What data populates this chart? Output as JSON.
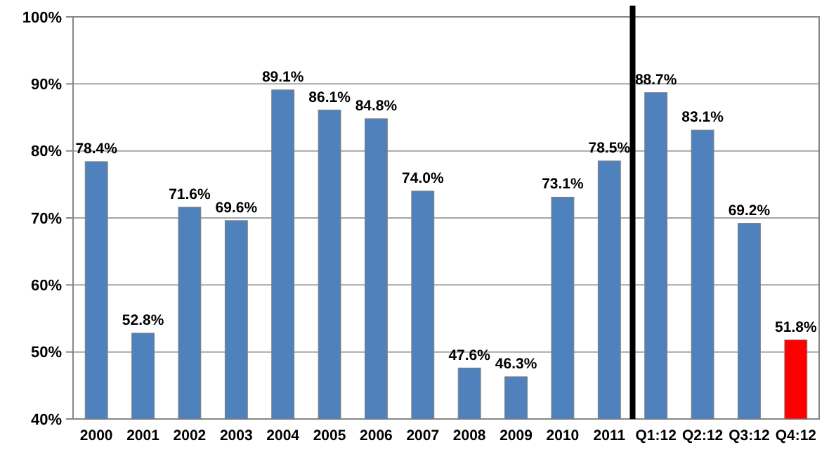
{
  "chart_data": {
    "type": "bar",
    "categories": [
      "2000",
      "2001",
      "2002",
      "2003",
      "2004",
      "2005",
      "2006",
      "2007",
      "2008",
      "2009",
      "2010",
      "2011",
      "Q1:12",
      "Q2:12",
      "Q3:12",
      "Q4:12"
    ],
    "values": [
      78.4,
      52.8,
      71.6,
      69.6,
      89.1,
      86.1,
      84.8,
      74.0,
      47.6,
      46.3,
      73.1,
      78.5,
      88.7,
      83.1,
      69.2,
      51.8
    ],
    "colors": [
      "#4f81bd",
      "#4f81bd",
      "#4f81bd",
      "#4f81bd",
      "#4f81bd",
      "#4f81bd",
      "#4f81bd",
      "#4f81bd",
      "#4f81bd",
      "#4f81bd",
      "#4f81bd",
      "#4f81bd",
      "#4f81bd",
      "#4f81bd",
      "#4f81bd",
      "#ff0000"
    ],
    "value_labels": [
      "78.4%",
      "52.8%",
      "71.6%",
      "69.6%",
      "89.1%",
      "86.1%",
      "84.8%",
      "74.0%",
      "47.6%",
      "46.3%",
      "73.1%",
      "78.5%",
      "88.7%",
      "83.1%",
      "69.2%",
      "51.8%"
    ],
    "ylim": [
      40,
      100
    ],
    "yticks": [
      {
        "value": 40,
        "label": "40%"
      },
      {
        "value": 50,
        "label": "50%"
      },
      {
        "value": 60,
        "label": "60%"
      },
      {
        "value": 70,
        "label": "70%"
      },
      {
        "value": 80,
        "label": "80%"
      },
      {
        "value": 90,
        "label": "90%"
      },
      {
        "value": 100,
        "label": "100%"
      }
    ],
    "grid": "y",
    "ref_lines": [
      {
        "axis": "x",
        "value": "Q1:12",
        "color": "#000000"
      }
    ]
  }
}
